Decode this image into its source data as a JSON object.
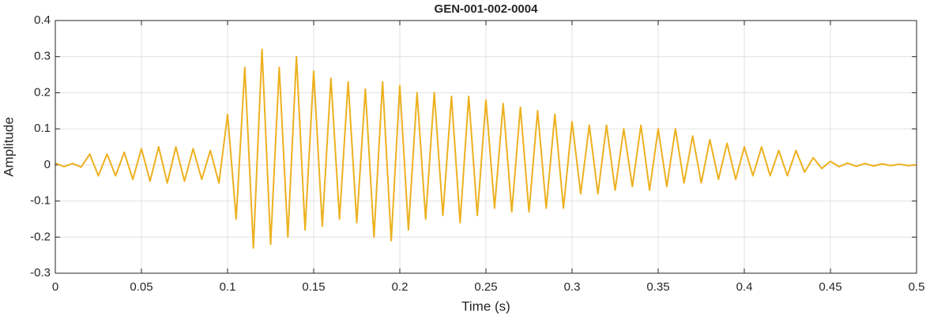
{
  "chart_data": {
    "type": "line",
    "title": "GEN-001-002-0004",
    "x_label": "Time (s)",
    "y_label": "Amplitude",
    "color": "#EDB120",
    "grid": true,
    "x": [
      0,
      0.005,
      0.01,
      0.015,
      0.02,
      0.025,
      0.03,
      0.035,
      0.04,
      0.045,
      0.05,
      0.055,
      0.06,
      0.065,
      0.07,
      0.075,
      0.08,
      0.085,
      0.09,
      0.095,
      0.1,
      0.105,
      0.11,
      0.115,
      0.12,
      0.125,
      0.13,
      0.135,
      0.14,
      0.145,
      0.15,
      0.155,
      0.16,
      0.165,
      0.17,
      0.175,
      0.18,
      0.185,
      0.19,
      0.195,
      0.2,
      0.205,
      0.21,
      0.215,
      0.22,
      0.225,
      0.23,
      0.235,
      0.24,
      0.245,
      0.25,
      0.255,
      0.26,
      0.265,
      0.27,
      0.275,
      0.28,
      0.285,
      0.29,
      0.295,
      0.3,
      0.305,
      0.31,
      0.315,
      0.32,
      0.325,
      0.33,
      0.335,
      0.34,
      0.345,
      0.35,
      0.355,
      0.36,
      0.365,
      0.37,
      0.375,
      0.38,
      0.385,
      0.39,
      0.395,
      0.4,
      0.405,
      0.41,
      0.415,
      0.42,
      0.425,
      0.43,
      0.435,
      0.44,
      0.445,
      0.45,
      0.455,
      0.46,
      0.465,
      0.47,
      0.475,
      0.48,
      0.485,
      0.49,
      0.495,
      0.5
    ],
    "values": [
      0.005,
      -0.005,
      0.004,
      -0.006,
      0.03,
      -0.03,
      0.03,
      -0.03,
      0.035,
      -0.04,
      0.045,
      -0.045,
      0.05,
      -0.05,
      0.05,
      -0.045,
      0.045,
      -0.04,
      0.04,
      -0.05,
      0.14,
      -0.15,
      0.27,
      -0.23,
      0.32,
      -0.22,
      0.27,
      -0.2,
      0.3,
      -0.18,
      0.26,
      -0.17,
      0.24,
      -0.15,
      0.23,
      -0.16,
      0.21,
      -0.2,
      0.23,
      -0.21,
      0.22,
      -0.18,
      0.2,
      -0.15,
      0.2,
      -0.14,
      0.19,
      -0.16,
      0.19,
      -0.14,
      0.18,
      -0.12,
      0.17,
      -0.13,
      0.16,
      -0.13,
      0.15,
      -0.12,
      0.14,
      -0.12,
      0.12,
      -0.08,
      0.11,
      -0.08,
      0.11,
      -0.07,
      0.1,
      -0.06,
      0.11,
      -0.07,
      0.1,
      -0.06,
      0.1,
      -0.05,
      0.08,
      -0.05,
      0.07,
      -0.04,
      0.06,
      -0.04,
      0.05,
      -0.03,
      0.05,
      -0.03,
      0.04,
      -0.03,
      0.04,
      -0.02,
      0.02,
      -0.01,
      0.01,
      -0.005,
      0.005,
      -0.004,
      0.004,
      -0.003,
      0.003,
      -0.002,
      0.002,
      -0.002,
      0
    ],
    "xlim": [
      0,
      0.5
    ],
    "xticks": [
      0,
      0.05,
      0.1,
      0.15,
      0.2,
      0.25,
      0.3,
      0.35,
      0.4,
      0.45,
      0.5
    ],
    "ylim": [
      -0.3,
      0.4
    ],
    "yticks": [
      -0.3,
      -0.2,
      -0.1,
      0,
      0.1,
      0.2,
      0.3,
      0.4
    ]
  }
}
